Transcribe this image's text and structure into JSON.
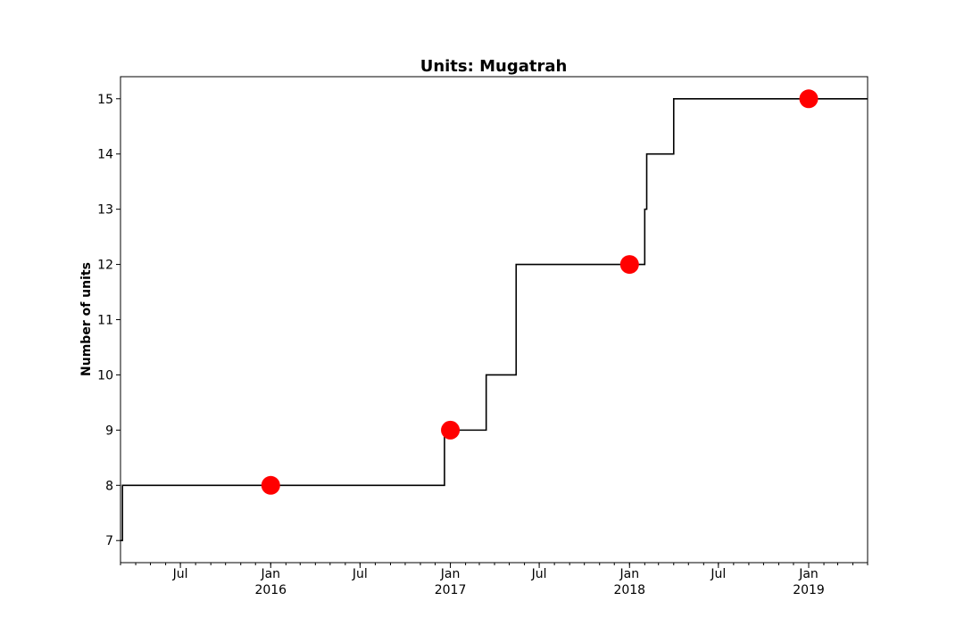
{
  "chart_data": {
    "type": "line",
    "title": "Units: Mugatrah",
    "xlabel": "",
    "ylabel": "Number of units",
    "xlim": [
      "2015-03-01",
      "2019-05-01"
    ],
    "ylim": [
      6.6,
      15.4
    ],
    "yticks": [
      7,
      8,
      9,
      10,
      11,
      12,
      13,
      14,
      15
    ],
    "xticks_major": [
      {
        "date": "2015-07-01",
        "label": "Jul",
        "sublabel": ""
      },
      {
        "date": "2016-01-01",
        "label": "Jan",
        "sublabel": "2016"
      },
      {
        "date": "2016-07-01",
        "label": "Jul",
        "sublabel": ""
      },
      {
        "date": "2017-01-01",
        "label": "Jan",
        "sublabel": "2017"
      },
      {
        "date": "2017-07-01",
        "label": "Jul",
        "sublabel": ""
      },
      {
        "date": "2018-01-01",
        "label": "Jan",
        "sublabel": "2018"
      },
      {
        "date": "2018-07-01",
        "label": "Jul",
        "sublabel": ""
      },
      {
        "date": "2019-01-01",
        "label": "Jan",
        "sublabel": "2019"
      }
    ],
    "grid": false,
    "series": [
      {
        "name": "",
        "kind": "step",
        "color": "#000000",
        "points": [
          {
            "x": "2015-03-01",
            "y": 7
          },
          {
            "x": "2015-03-05",
            "y": 8
          },
          {
            "x": "2016-12-20",
            "y": 9
          },
          {
            "x": "2017-03-15",
            "y": 10
          },
          {
            "x": "2017-05-15",
            "y": 12
          },
          {
            "x": "2018-02-01",
            "y": 13
          },
          {
            "x": "2018-02-05",
            "y": 14
          },
          {
            "x": "2018-04-01",
            "y": 15
          },
          {
            "x": "2019-05-01",
            "y": 15
          }
        ]
      },
      {
        "name": "",
        "kind": "markers",
        "color": "#ff0000",
        "points": [
          {
            "x": "2016-01-01",
            "y": 8
          },
          {
            "x": "2017-01-01",
            "y": 9
          },
          {
            "x": "2018-01-01",
            "y": 12
          },
          {
            "x": "2019-01-01",
            "y": 15
          }
        ]
      }
    ]
  }
}
